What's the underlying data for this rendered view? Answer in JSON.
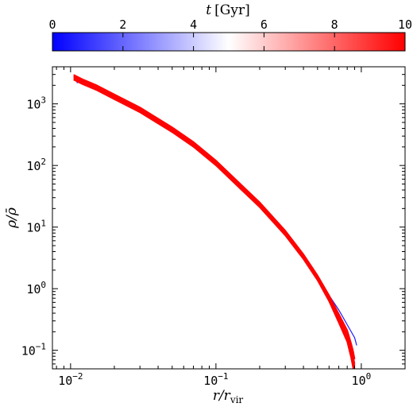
{
  "chart_data": {
    "type": "line",
    "title": "",
    "xlabel": "r/r_vir",
    "ylabel": "ρ/ρ̄",
    "xscale": "log",
    "yscale": "log",
    "xlim": [
      0.0075,
      2.0
    ],
    "ylim": [
      0.05,
      4000
    ],
    "xticks": [
      {
        "value": 0.01,
        "base": "10",
        "exp": "−2"
      },
      {
        "value": 0.1,
        "base": "10",
        "exp": "−1"
      },
      {
        "value": 1,
        "base": "10",
        "exp": "0"
      }
    ],
    "yticks": [
      {
        "value": 0.1,
        "base": "10",
        "exp": "−1"
      },
      {
        "value": 1,
        "base": "10",
        "exp": "0"
      },
      {
        "value": 10,
        "base": "10",
        "exp": "1"
      },
      {
        "value": 100,
        "base": "10",
        "exp": "2"
      },
      {
        "value": 1000,
        "base": "10",
        "exp": "3"
      }
    ],
    "grid": false,
    "colorbar": {
      "label_var": "t",
      "label_unit": "[Gyr]",
      "cmap": "bwr",
      "colors": [
        "#0000ff",
        "#ffffff",
        "#ff0000"
      ],
      "range": [
        0,
        10
      ],
      "ticks": [
        "0",
        "2",
        "4",
        "6",
        "8",
        "10"
      ],
      "position": "top"
    },
    "series": [
      {
        "t": 0.5,
        "color": "#1a1aff",
        "x": [
          0.011,
          0.0125,
          0.015,
          0.02,
          0.03,
          0.05,
          0.07,
          0.1,
          0.15,
          0.2,
          0.3,
          0.4,
          0.5,
          0.6,
          0.7,
          0.8,
          0.9,
          0.93
        ],
        "y": [
          2200,
          2350,
          1750,
          1320,
          790,
          380,
          215,
          112,
          46,
          24.5,
          8.6,
          3.4,
          1.55,
          0.78,
          0.45,
          0.26,
          0.16,
          0.12
        ]
      },
      {
        "t": 9.5,
        "color": "#ff0000",
        "x": [
          0.0105,
          0.012,
          0.015,
          0.02,
          0.03,
          0.05,
          0.07,
          0.1,
          0.15,
          0.2,
          0.3,
          0.4,
          0.5,
          0.6,
          0.7,
          0.8,
          0.85,
          0.88,
          0.9
        ],
        "y": [
          2700,
          2300,
          1850,
          1300,
          800,
          380,
          220,
          110,
          44,
          23,
          8.0,
          3.3,
          1.5,
          0.7,
          0.33,
          0.17,
          0.1,
          0.07,
          0.05
        ]
      }
    ]
  }
}
